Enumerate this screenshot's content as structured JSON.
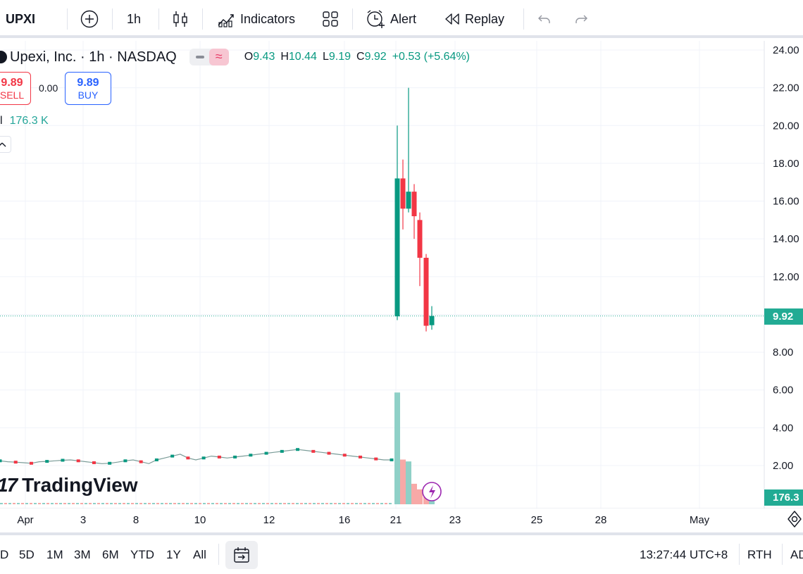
{
  "toolbar": {
    "symbol": "UPXI",
    "interval": "1h",
    "indicators_label": "Indicators",
    "alert_label": "Alert",
    "replay_label": "Replay",
    "icons": [
      "plus-circle-icon",
      "candles-icon",
      "indicators-icon",
      "layout-grid-icon",
      "alarm-icon",
      "rewind-icon",
      "undo-icon",
      "redo-icon"
    ]
  },
  "legend": {
    "title": "Upexi, Inc. · 1h · NASDAQ",
    "toggle_symbol": "≈",
    "ohlc": {
      "o_label": "O",
      "o": "9.43",
      "h_label": "H",
      "h": "10.44",
      "l_label": "L",
      "l": "9.19",
      "c_label": "C",
      "c": "9.92",
      "change": "+0.53 (+5.64%)"
    }
  },
  "trade": {
    "sell_price": "9.89",
    "sell_label": "SELL",
    "spread": "0.00",
    "buy_price": "9.89",
    "buy_label": "BUY"
  },
  "volume_legend": {
    "label": "l",
    "value": "176.3 K"
  },
  "watermark": {
    "logo": "17",
    "text": "TradingView"
  },
  "price_axis": {
    "ticks": [
      "24.00",
      "22.00",
      "20.00",
      "18.00",
      "16.00",
      "14.00",
      "12.00",
      "8.00",
      "6.00",
      "4.00",
      "2.00"
    ],
    "tick_values": [
      24,
      22,
      20,
      18,
      16,
      14,
      12,
      8,
      6,
      4,
      2
    ],
    "last_price": "9.92",
    "last_volume": "176.3"
  },
  "time_axis": {
    "labels": [
      "Apr",
      "3",
      "8",
      "10",
      "12",
      "16",
      "21",
      "23",
      "25",
      "28",
      "May"
    ]
  },
  "chart_data": {
    "type": "candlestick",
    "price_range": [
      0,
      24.8
    ],
    "last_price": 9.92,
    "colors": {
      "up": "#089981",
      "down": "#f23645",
      "volume_up": "#8fd0c7",
      "volume_down": "#f7a9a7"
    },
    "pre_spike_line": [
      2.25,
      2.2,
      2.18,
      2.15,
      2.12,
      2.2,
      2.22,
      2.25,
      2.28,
      2.3,
      2.25,
      2.2,
      2.15,
      2.1,
      2.12,
      2.18,
      2.25,
      2.3,
      2.2,
      2.1,
      2.3,
      2.4,
      2.5,
      2.6,
      2.4,
      2.3,
      2.4,
      2.5,
      2.45,
      2.4,
      2.45,
      2.5,
      2.55,
      2.6,
      2.65,
      2.7,
      2.75,
      2.8,
      2.85,
      2.8,
      2.75,
      2.7,
      2.65,
      2.6,
      2.55,
      2.5,
      2.45,
      2.4,
      2.35,
      2.3,
      2.3
    ],
    "candles": [
      {
        "o": 9.9,
        "h": 20.0,
        "l": 9.7,
        "c": 17.2
      },
      {
        "o": 17.2,
        "h": 18.2,
        "l": 14.5,
        "c": 15.6
      },
      {
        "o": 15.6,
        "h": 22.0,
        "l": 15.4,
        "c": 16.5
      },
      {
        "o": 16.5,
        "h": 16.9,
        "l": 14.0,
        "c": 15.2
      },
      {
        "o": 15.0,
        "h": 15.4,
        "l": 11.5,
        "c": 13.0
      },
      {
        "o": 13.0,
        "h": 13.2,
        "l": 9.1,
        "c": 9.4
      },
      {
        "o": 9.43,
        "h": 10.44,
        "l": 9.19,
        "c": 9.92
      }
    ],
    "volume_scale_max": 6.2,
    "volumes": [
      6.0,
      2.4,
      2.3,
      1.1,
      0.8,
      0.5,
      0.25
    ],
    "volume_up": [
      true,
      false,
      true,
      false,
      false,
      false,
      true
    ]
  },
  "bottom_bar": {
    "ranges": [
      "D",
      "5D",
      "1M",
      "3M",
      "6M",
      "YTD",
      "1Y",
      "All"
    ],
    "clock": "13:27:44 UTC+8",
    "session": "RTH",
    "adjust": "AD"
  }
}
